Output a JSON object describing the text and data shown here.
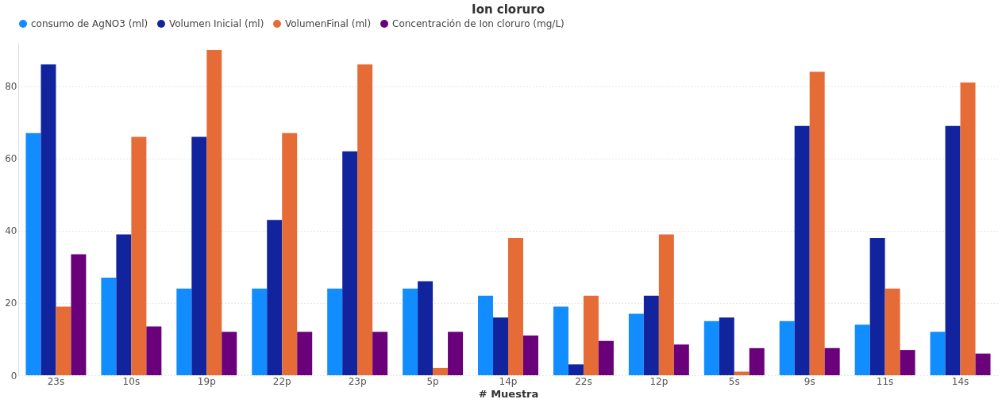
{
  "chart_data": {
    "type": "bar",
    "title": "Ion cloruro",
    "xlabel": "# Muestra",
    "categories": [
      "23s",
      "10s",
      "19p",
      "22p",
      "23p",
      "5p",
      "14p",
      "22s",
      "12p",
      "5s",
      "9s",
      "11s",
      "14s"
    ],
    "series": [
      {
        "name": "consumo de AgNO3 (ml)",
        "color": "#118dff",
        "values": [
          67,
          27,
          24,
          24,
          24,
          24,
          22,
          19,
          17,
          15,
          15,
          14,
          12
        ]
      },
      {
        "name": "Volumen Inicial (ml)",
        "color": "#12239e",
        "values": [
          86,
          39,
          66,
          43,
          62,
          26,
          16,
          3,
          22,
          16,
          69,
          38,
          69
        ]
      },
      {
        "name": "VolumenFinal (ml)",
        "color": "#e66c37",
        "values": [
          19,
          66,
          90,
          67,
          86,
          2,
          38,
          22,
          39,
          1,
          84,
          24,
          81
        ]
      },
      {
        "name": "Concentración de Ion cloruro (mg/L)",
        "color": "#6b007b",
        "values": [
          33.5,
          13.5,
          12,
          12,
          12,
          12,
          11,
          9.5,
          8.5,
          7.5,
          7.5,
          7,
          6
        ]
      }
    ],
    "ylim": [
      0,
      92
    ],
    "yticks": [
      0,
      20,
      40,
      60,
      80
    ],
    "grid": "y",
    "legend": "top left"
  }
}
